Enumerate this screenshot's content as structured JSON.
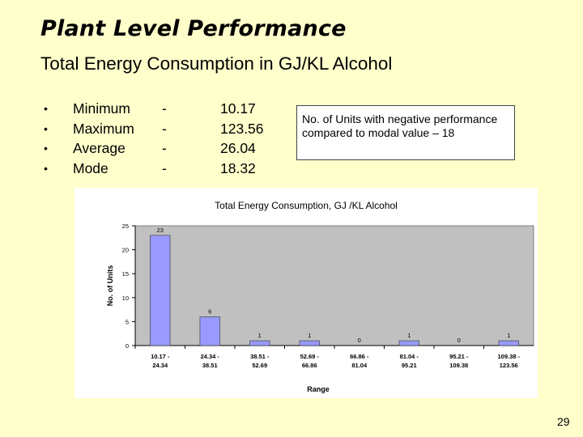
{
  "slide": {
    "title": "Plant Level Performance",
    "subtitle": "Total Energy Consumption in GJ/KL Alcohol",
    "page_number": "29"
  },
  "stats": [
    {
      "bullet": "•",
      "label": "Minimum",
      "dash": "-",
      "value": "10.17"
    },
    {
      "bullet": "•",
      "label": "Maximum",
      "dash": "-",
      "value": "123.56"
    },
    {
      "bullet": "•",
      "label": "Average",
      "dash": "-",
      "value": "26.04"
    },
    {
      "bullet": "•",
      "label": "Mode",
      "dash": "-",
      "value": "18.32"
    }
  ],
  "note": "No. of Units with negative performance compared to modal value – 18",
  "chart_data": {
    "type": "bar",
    "title": "Total Energy Consumption, GJ /KL Alcohol",
    "xlabel": "Range",
    "ylabel": "No. of Units",
    "categories": [
      [
        "10.17 -",
        "24.34"
      ],
      [
        "24.34 -",
        "38.51"
      ],
      [
        "38.51 -",
        "52.69"
      ],
      [
        "52.69 -",
        "66.86"
      ],
      [
        "66.86 -",
        "81.04"
      ],
      [
        "81.04 -",
        "95.21"
      ],
      [
        "95.21 -",
        "109.38"
      ],
      [
        "109.38 -",
        "123.56"
      ]
    ],
    "values": [
      23,
      6,
      1,
      1,
      0,
      1,
      0,
      1
    ],
    "ylim": [
      0,
      25
    ],
    "yticks": [
      0,
      5,
      10,
      15,
      20,
      25
    ],
    "bar_color": "#9999ff",
    "plot_background": "#c0c0c0",
    "grid": false,
    "legend": "none"
  }
}
